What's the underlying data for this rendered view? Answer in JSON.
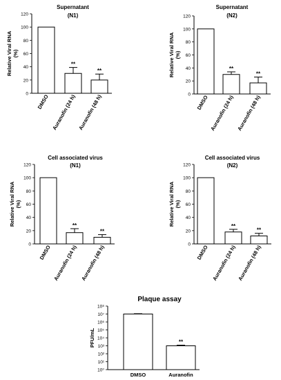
{
  "chart_data": [
    {
      "type": "bar",
      "title": "Supernatant",
      "subtitle": "(N1)",
      "ylabel": "Relative Viral RNA",
      "ylabel2": "(%)",
      "categories": [
        "DMSO",
        "Auranofin (24 h)",
        "Auranofin (48 h)"
      ],
      "values": [
        100,
        30,
        20
      ],
      "errors": [
        0,
        9,
        9
      ],
      "significance": [
        "",
        "**",
        "**"
      ],
      "ylim": [
        0,
        120
      ],
      "yticks": [
        "0",
        "20",
        "40",
        "60",
        "80",
        "100",
        "120"
      ],
      "grid": false
    },
    {
      "type": "bar",
      "title": "Supernatant",
      "subtitle": "(N2)",
      "ylabel": "Relative Viral RNA",
      "ylabel2": "(%)",
      "categories": [
        "DMSO",
        "Auranofin (24 h)",
        "Auranofin (48 h)"
      ],
      "values": [
        100,
        30,
        17
      ],
      "errors": [
        0,
        4,
        9
      ],
      "significance": [
        "",
        "**",
        "**"
      ],
      "ylim": [
        0,
        120
      ],
      "yticks": [
        "0",
        "20",
        "40",
        "60",
        "80",
        "100",
        "120"
      ],
      "grid": false
    },
    {
      "type": "bar",
      "title": "Cell associated virus",
      "subtitle": "(N1)",
      "ylabel": "Relative Viral RNA",
      "ylabel2": "(%)",
      "categories": [
        "DMSO",
        "Auranofin (24 h)",
        "Auranofin (48 h)"
      ],
      "values": [
        100,
        17,
        10
      ],
      "errors": [
        0,
        6,
        4
      ],
      "significance": [
        "",
        "**",
        "**"
      ],
      "ylim": [
        0,
        120
      ],
      "yticks": [
        "0",
        "20",
        "40",
        "60",
        "80",
        "100",
        "120"
      ],
      "grid": false
    },
    {
      "type": "bar",
      "title": "Cell associated virus",
      "subtitle": "(N2)",
      "ylabel": "Relative Viral RNA",
      "ylabel2": "(%)",
      "categories": [
        "DMSO",
        "Auranofin (24 h)",
        "Auranofin (48 h)"
      ],
      "values": [
        100,
        18,
        12
      ],
      "errors": [
        0,
        4,
        4
      ],
      "significance": [
        "",
        "**",
        "**"
      ],
      "ylim": [
        0,
        120
      ],
      "yticks": [
        "0",
        "20",
        "40",
        "60",
        "80",
        "100",
        "120"
      ],
      "grid": false
    },
    {
      "type": "bar",
      "title": "Plaque assay",
      "subtitle": "",
      "ylabel": "PFU/mL",
      "ylabel2": "",
      "yscale": "log",
      "categories": [
        "DMSO",
        "Auranofin"
      ],
      "values": [
        10000000,
        1000
      ],
      "errors": [
        1000000,
        200
      ],
      "significance": [
        "",
        "**"
      ],
      "ylim": [
        1,
        100000000
      ],
      "yticks": [
        "10⁰",
        "10¹",
        "10²",
        "10³",
        "10⁴",
        "10⁵",
        "10⁶",
        "10⁷",
        "10⁸"
      ],
      "grid": false
    }
  ]
}
